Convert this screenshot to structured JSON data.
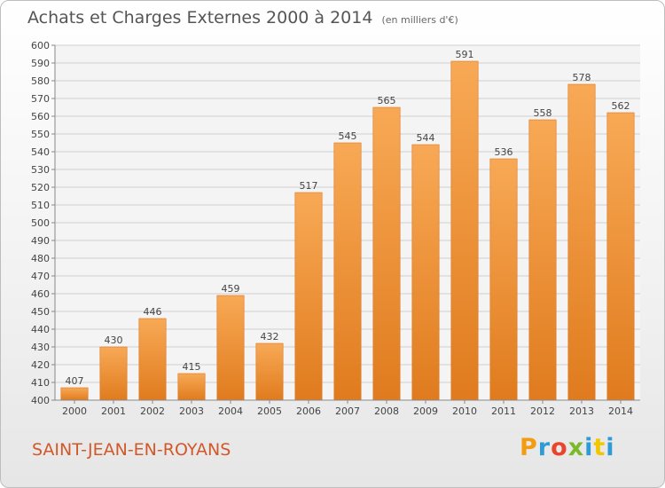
{
  "chart_data": {
    "type": "bar",
    "title": "Achats et Charges Externes 2000 à 2014",
    "subtitle": "(en milliers d'€)",
    "categories": [
      "2000",
      "2001",
      "2002",
      "2003",
      "2004",
      "2005",
      "2006",
      "2007",
      "2008",
      "2009",
      "2010",
      "2011",
      "2012",
      "2013",
      "2014"
    ],
    "values": [
      407,
      430,
      446,
      415,
      459,
      432,
      517,
      545,
      565,
      544,
      591,
      536,
      558,
      578,
      562
    ],
    "ylim": [
      400,
      600
    ],
    "yticks": [
      400,
      410,
      420,
      430,
      440,
      450,
      460,
      470,
      480,
      490,
      500,
      510,
      520,
      530,
      540,
      550,
      560,
      570,
      580,
      590,
      600
    ],
    "grid": true,
    "legend": "none",
    "bar_color_light": "#f8a955",
    "bar_color_dark": "#e07b1e"
  },
  "commune": "SAINT-JEAN-EN-ROYANS",
  "logo": {
    "letters": [
      "P",
      "r",
      "o",
      "x",
      "i",
      "t",
      "i"
    ],
    "colors": [
      "#f39c12",
      "#2e9bd6",
      "#e8452c",
      "#7ab929",
      "#2e9bd6",
      "#f3c600",
      "#2e9bd6"
    ]
  }
}
